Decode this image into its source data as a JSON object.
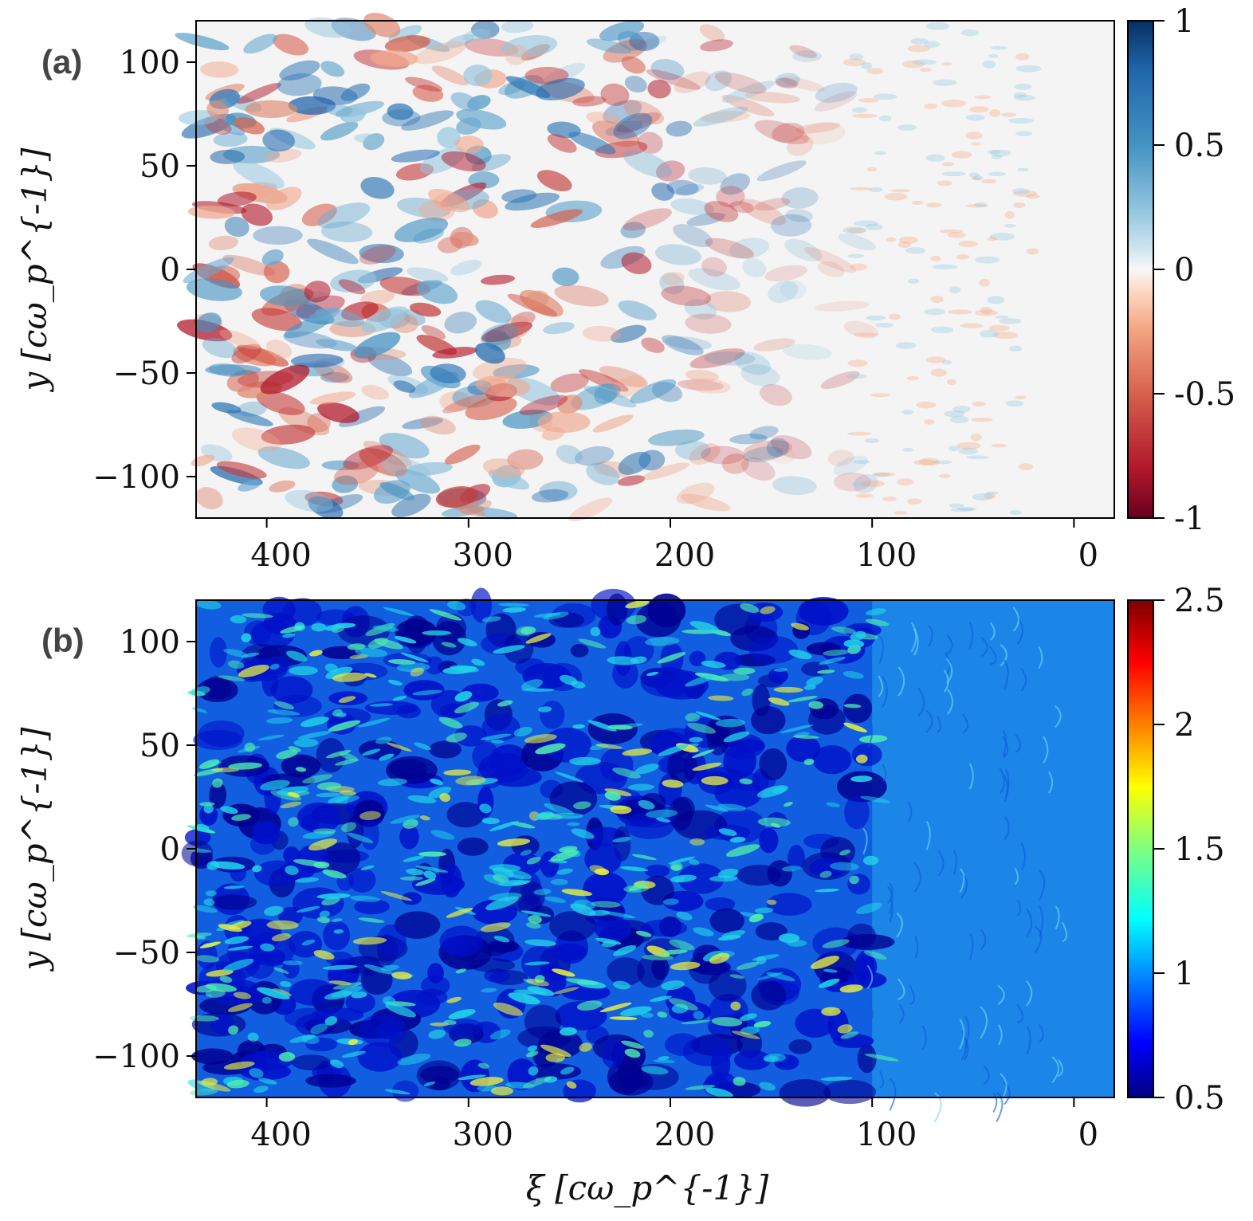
{
  "chart_data": [
    {
      "type": "heatmap",
      "panel_label": "(a)",
      "xlabel": "ξ [cω_p^{-1}]",
      "ylabel": "y [cω_p^{-1}]",
      "xlim": [
        435,
        -20
      ],
      "ylim": [
        -120,
        120
      ],
      "x_ticks": [
        {
          "value": 400,
          "label": "400"
        },
        {
          "value": 300,
          "label": "300"
        },
        {
          "value": 200,
          "label": "200"
        },
        {
          "value": 100,
          "label": "100"
        },
        {
          "value": 0,
          "label": "0"
        }
      ],
      "y_ticks": [
        {
          "value": 100,
          "label": "100"
        },
        {
          "value": 50,
          "label": "50"
        },
        {
          "value": 0,
          "label": "0"
        },
        {
          "value": -50,
          "label": "−50"
        },
        {
          "value": -100,
          "label": "−100"
        }
      ],
      "colorbar": {
        "colormap": "RdBu",
        "range": [
          -1,
          1
        ],
        "ticks": [
          {
            "value": 1,
            "label": "1"
          },
          {
            "value": 0.5,
            "label": "0.5"
          },
          {
            "value": 0,
            "label": "0"
          },
          {
            "value": -0.5,
            "label": "-0.5"
          },
          {
            "value": -1,
            "label": "-1"
          }
        ]
      },
      "field_description": "modulation strong for xi > 100, fading to ~0 near xi = 0",
      "active_xi_extent": [
        100,
        435
      ],
      "background_value": 0
    },
    {
      "type": "heatmap",
      "panel_label": "(b)",
      "xlabel": "ξ [cω_p^{-1}]",
      "ylabel": "y [cω_p^{-1}]",
      "xlim": [
        435,
        -20
      ],
      "ylim": [
        -120,
        120
      ],
      "x_ticks": [
        {
          "value": 400,
          "label": "400"
        },
        {
          "value": 300,
          "label": "300"
        },
        {
          "value": 200,
          "label": "200"
        },
        {
          "value": 100,
          "label": "100"
        },
        {
          "value": 0,
          "label": "0"
        }
      ],
      "y_ticks": [
        {
          "value": 100,
          "label": "100"
        },
        {
          "value": 50,
          "label": "50"
        },
        {
          "value": 0,
          "label": "0"
        },
        {
          "value": -50,
          "label": "−50"
        },
        {
          "value": -100,
          "label": "−100"
        }
      ],
      "colorbar": {
        "colormap": "jet",
        "range": [
          0.5,
          2.5
        ],
        "ticks": [
          {
            "value": 2.5,
            "label": "2.5"
          },
          {
            "value": 2,
            "label": "2"
          },
          {
            "value": 1.5,
            "label": "1.5"
          },
          {
            "value": 1,
            "label": "1"
          },
          {
            "value": 0.5,
            "label": "0.5"
          }
        ]
      },
      "background_value": 1
    }
  ]
}
